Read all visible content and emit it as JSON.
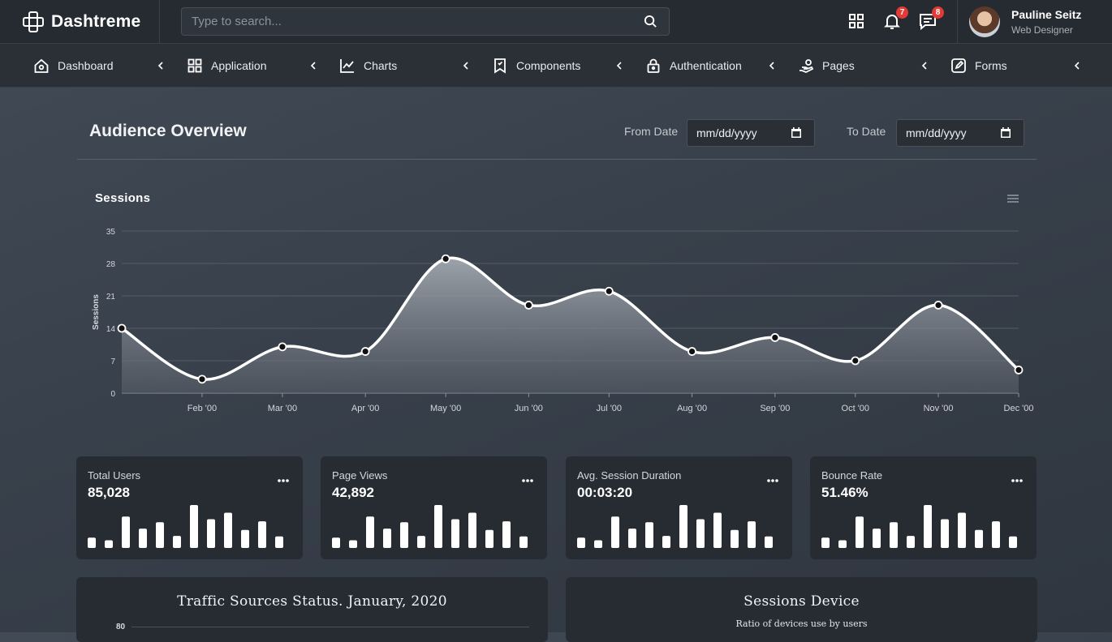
{
  "brand": {
    "name": "Dashtreme"
  },
  "search": {
    "placeholder": "Type to search..."
  },
  "header": {
    "notification_count": "7",
    "message_count": "8",
    "user": {
      "name": "Pauline Seitz",
      "role": "Web Designer"
    }
  },
  "nav": {
    "items": [
      {
        "label": "Dashboard",
        "icon": "home-icon"
      },
      {
        "label": "Application",
        "icon": "grid-icon"
      },
      {
        "label": "Charts",
        "icon": "line-chart-icon"
      },
      {
        "label": "Components",
        "icon": "bookmark-icon"
      },
      {
        "label": "Authentication",
        "icon": "lock-icon"
      },
      {
        "label": "Pages",
        "icon": "hand-icon"
      },
      {
        "label": "Forms",
        "icon": "edit-icon"
      }
    ]
  },
  "overview": {
    "title": "Audience Overview",
    "from_label": "From Date",
    "to_label": "To Date",
    "date_placeholder": "mm/dd/yyyy"
  },
  "chart_data": {
    "type": "area",
    "title": "Sessions",
    "ylabel": "Sessions",
    "xlabel": "",
    "ylim": [
      0,
      35
    ],
    "yticks": [
      0,
      7,
      14,
      21,
      28,
      35
    ],
    "x_tick_labels": [
      "Feb '00",
      "Mar '00",
      "Apr '00",
      "May '00",
      "Jun '00",
      "Jul '00",
      "Aug '00",
      "Sep '00",
      "Oct '00",
      "Nov '00",
      "Dec '00"
    ],
    "x": [
      "2000-01-01",
      "2000-01-31",
      "2000-03-01",
      "2000-04-01",
      "2000-05-01",
      "2000-06-01",
      "2000-07-01",
      "2000-08-01",
      "2000-09-01",
      "2000-10-01",
      "2000-11-01",
      "2000-12-01"
    ],
    "series": [
      {
        "values": [
          14,
          3,
          10,
          9,
          29,
          19,
          22,
          9,
          12,
          7,
          19,
          5
        ]
      }
    ],
    "grid": true,
    "legend": "none"
  },
  "stats": [
    {
      "label": "Total Users",
      "value": "85,028",
      "bars": [
        0.24,
        0.18,
        0.73,
        0.45,
        0.6,
        0.28,
        1.0,
        0.67,
        0.82,
        0.42,
        0.62,
        0.27
      ]
    },
    {
      "label": "Page Views",
      "value": "42,892",
      "bars": [
        0.24,
        0.18,
        0.73,
        0.45,
        0.6,
        0.28,
        1.0,
        0.67,
        0.82,
        0.42,
        0.62,
        0.27
      ]
    },
    {
      "label": "Avg. Session Duration",
      "value": "00:03:20",
      "bars": [
        0.24,
        0.18,
        0.73,
        0.45,
        0.6,
        0.28,
        1.0,
        0.67,
        0.82,
        0.42,
        0.62,
        0.27
      ]
    },
    {
      "label": "Bounce Rate",
      "value": "51.46%",
      "bars": [
        0.24,
        0.18,
        0.73,
        0.45,
        0.6,
        0.28,
        1.0,
        0.67,
        0.82,
        0.42,
        0.62,
        0.27
      ]
    }
  ],
  "panels": {
    "traffic": {
      "title": "Traffic Sources Status. January, 2020",
      "first_tick": "80"
    },
    "devices": {
      "title": "Sessions Device",
      "subtitle": "Ratio of devices use by users"
    }
  }
}
